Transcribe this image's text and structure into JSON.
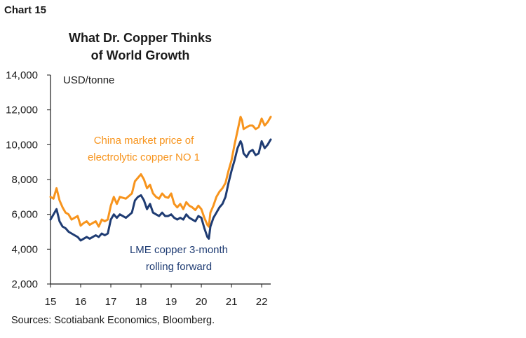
{
  "header": {
    "chart_number": "Chart 15",
    "title_line1": "What Dr. Copper Thinks",
    "title_line2": "of World Growth"
  },
  "footer": {
    "sources": "Sources: Scotiabank Economics, Bloomberg."
  },
  "colors": {
    "china_series": "#F7941D",
    "lme_series": "#1F3C73",
    "axis": "#1a1a1a",
    "text": "#1a1a1a"
  },
  "chart_data": {
    "type": "line",
    "title": "What Dr. Copper Thinks of World Growth",
    "ylabel": "USD/tonne",
    "xlabel": "",
    "ylim": [
      2000,
      14000
    ],
    "xlim": [
      15,
      22.3
    ],
    "yticks": [
      2000,
      4000,
      6000,
      8000,
      10000,
      12000,
      14000
    ],
    "ytick_labels": [
      "2,000",
      "4,000",
      "6,000",
      "8,000",
      "10,000",
      "12,000",
      "14,000"
    ],
    "xticks": [
      15,
      16,
      17,
      18,
      19,
      20,
      21,
      22
    ],
    "xtick_labels": [
      "15",
      "16",
      "17",
      "18",
      "19",
      "20",
      "21",
      "22"
    ],
    "grid": false,
    "series": [
      {
        "name": "China market price of electrolytic copper NO 1",
        "label_lines": [
          "China market price of",
          "electrolytic copper NO 1"
        ],
        "color": "#F7941D",
        "x": [
          15.0,
          15.1,
          15.2,
          15.3,
          15.4,
          15.5,
          15.6,
          15.7,
          15.8,
          15.9,
          16.0,
          16.1,
          16.2,
          16.3,
          16.4,
          16.5,
          16.6,
          16.7,
          16.8,
          16.9,
          17.0,
          17.1,
          17.2,
          17.3,
          17.5,
          17.7,
          17.8,
          17.9,
          18.0,
          18.1,
          18.2,
          18.3,
          18.4,
          18.5,
          18.6,
          18.7,
          18.8,
          18.9,
          19.0,
          19.1,
          19.2,
          19.3,
          19.4,
          19.5,
          19.6,
          19.7,
          19.8,
          19.9,
          20.0,
          20.1,
          20.2,
          20.25,
          20.3,
          20.4,
          20.5,
          20.6,
          20.7,
          20.8,
          20.9,
          21.0,
          21.1,
          21.2,
          21.3,
          21.35,
          21.4,
          21.5,
          21.6,
          21.7,
          21.8,
          21.9,
          22.0,
          22.1,
          22.2,
          22.3
        ],
        "values": [
          7000,
          6900,
          7500,
          6800,
          6400,
          6100,
          6000,
          5700,
          5800,
          5900,
          5350,
          5500,
          5600,
          5400,
          5500,
          5600,
          5300,
          5700,
          5600,
          5700,
          6500,
          7000,
          6600,
          7000,
          6900,
          7200,
          7900,
          8100,
          8300,
          8000,
          7500,
          7700,
          7200,
          7000,
          6900,
          7200,
          7000,
          6950,
          7200,
          6600,
          6400,
          6600,
          6300,
          6700,
          6500,
          6400,
          6250,
          6500,
          6300,
          5800,
          5400,
          5300,
          6100,
          6500,
          7000,
          7300,
          7500,
          7800,
          8500,
          9100,
          10000,
          10800,
          11600,
          11400,
          10900,
          11000,
          11100,
          11100,
          10900,
          11000,
          11500,
          11100,
          11300,
          11600
        ]
      },
      {
        "name": "LME copper 3-month rolling forward",
        "label_lines": [
          "LME copper 3-month",
          "rolling forward"
        ],
        "color": "#1F3C73",
        "x": [
          15.0,
          15.1,
          15.2,
          15.3,
          15.4,
          15.5,
          15.6,
          15.7,
          15.8,
          15.9,
          16.0,
          16.1,
          16.2,
          16.3,
          16.4,
          16.5,
          16.6,
          16.7,
          16.8,
          16.9,
          17.0,
          17.1,
          17.2,
          17.3,
          17.5,
          17.7,
          17.8,
          17.9,
          18.0,
          18.1,
          18.2,
          18.3,
          18.4,
          18.5,
          18.6,
          18.7,
          18.8,
          18.9,
          19.0,
          19.1,
          19.2,
          19.3,
          19.4,
          19.5,
          19.6,
          19.7,
          19.8,
          19.9,
          20.0,
          20.1,
          20.2,
          20.25,
          20.3,
          20.4,
          20.5,
          20.6,
          20.7,
          20.8,
          20.9,
          21.0,
          21.1,
          21.2,
          21.3,
          21.35,
          21.4,
          21.5,
          21.6,
          21.7,
          21.8,
          21.9,
          22.0,
          22.1,
          22.2,
          22.3
        ],
        "values": [
          5700,
          6000,
          6300,
          5600,
          5300,
          5200,
          5000,
          4900,
          4800,
          4700,
          4500,
          4600,
          4700,
          4600,
          4700,
          4800,
          4700,
          4900,
          4800,
          4900,
          5700,
          6000,
          5800,
          6000,
          5800,
          6100,
          6800,
          7000,
          7100,
          6800,
          6300,
          6600,
          6100,
          6000,
          5900,
          6100,
          5900,
          5900,
          6000,
          5800,
          5700,
          5800,
          5700,
          6000,
          5800,
          5700,
          5600,
          5900,
          5800,
          5200,
          4700,
          4600,
          5300,
          5800,
          6100,
          6400,
          6600,
          7000,
          7800,
          8500,
          9100,
          9800,
          10200,
          10000,
          9500,
          9300,
          9600,
          9700,
          9400,
          9500,
          10200,
          9800,
          10000,
          10300
        ]
      }
    ]
  }
}
